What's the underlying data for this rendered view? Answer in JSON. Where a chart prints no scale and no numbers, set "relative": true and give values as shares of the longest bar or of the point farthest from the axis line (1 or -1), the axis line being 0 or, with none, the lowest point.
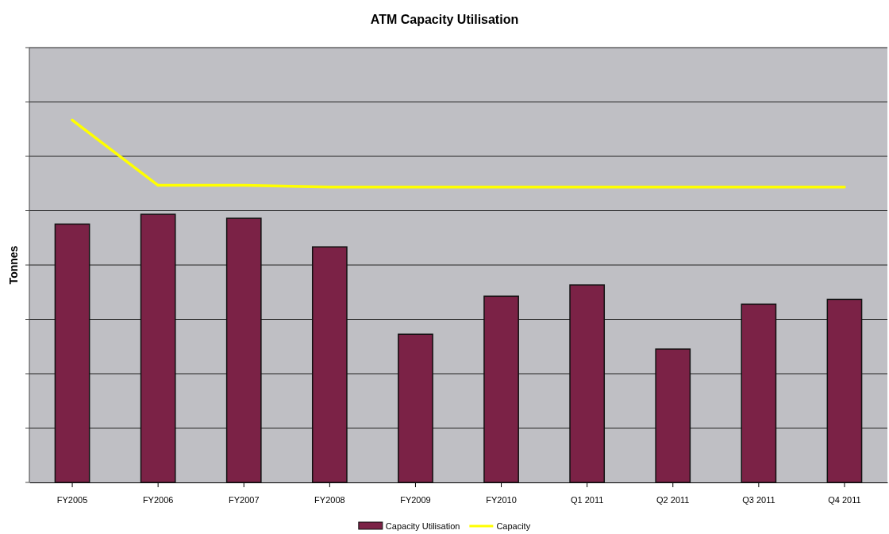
{
  "chart_data": {
    "type": "bar",
    "title": "ATM Capacity Utilisation",
    "ylabel": "Tonnes",
    "relative": true,
    "grid": "y",
    "legend": "bottom",
    "categories": [
      "FY2005",
      "FY2006",
      "FY2007",
      "FY2008",
      "FY2009",
      "FY2010",
      "Q1 2011",
      "Q2 2011",
      "Q3 2011",
      "Q4 2011"
    ],
    "series": [
      {
        "name": "Capacity Utilisation",
        "color": "#7b2246",
        "values": [
          0.713,
          0.74,
          0.729,
          0.65,
          0.409,
          0.514,
          0.545,
          0.368,
          0.492,
          0.505
        ]
      },
      {
        "name": "Capacity",
        "type": "line",
        "color": "#ffff00",
        "values": [
          1,
          0.82,
          0.82,
          0.815,
          0.815,
          0.815,
          0.815,
          0.815,
          0.815,
          0.815
        ]
      }
    ]
  }
}
